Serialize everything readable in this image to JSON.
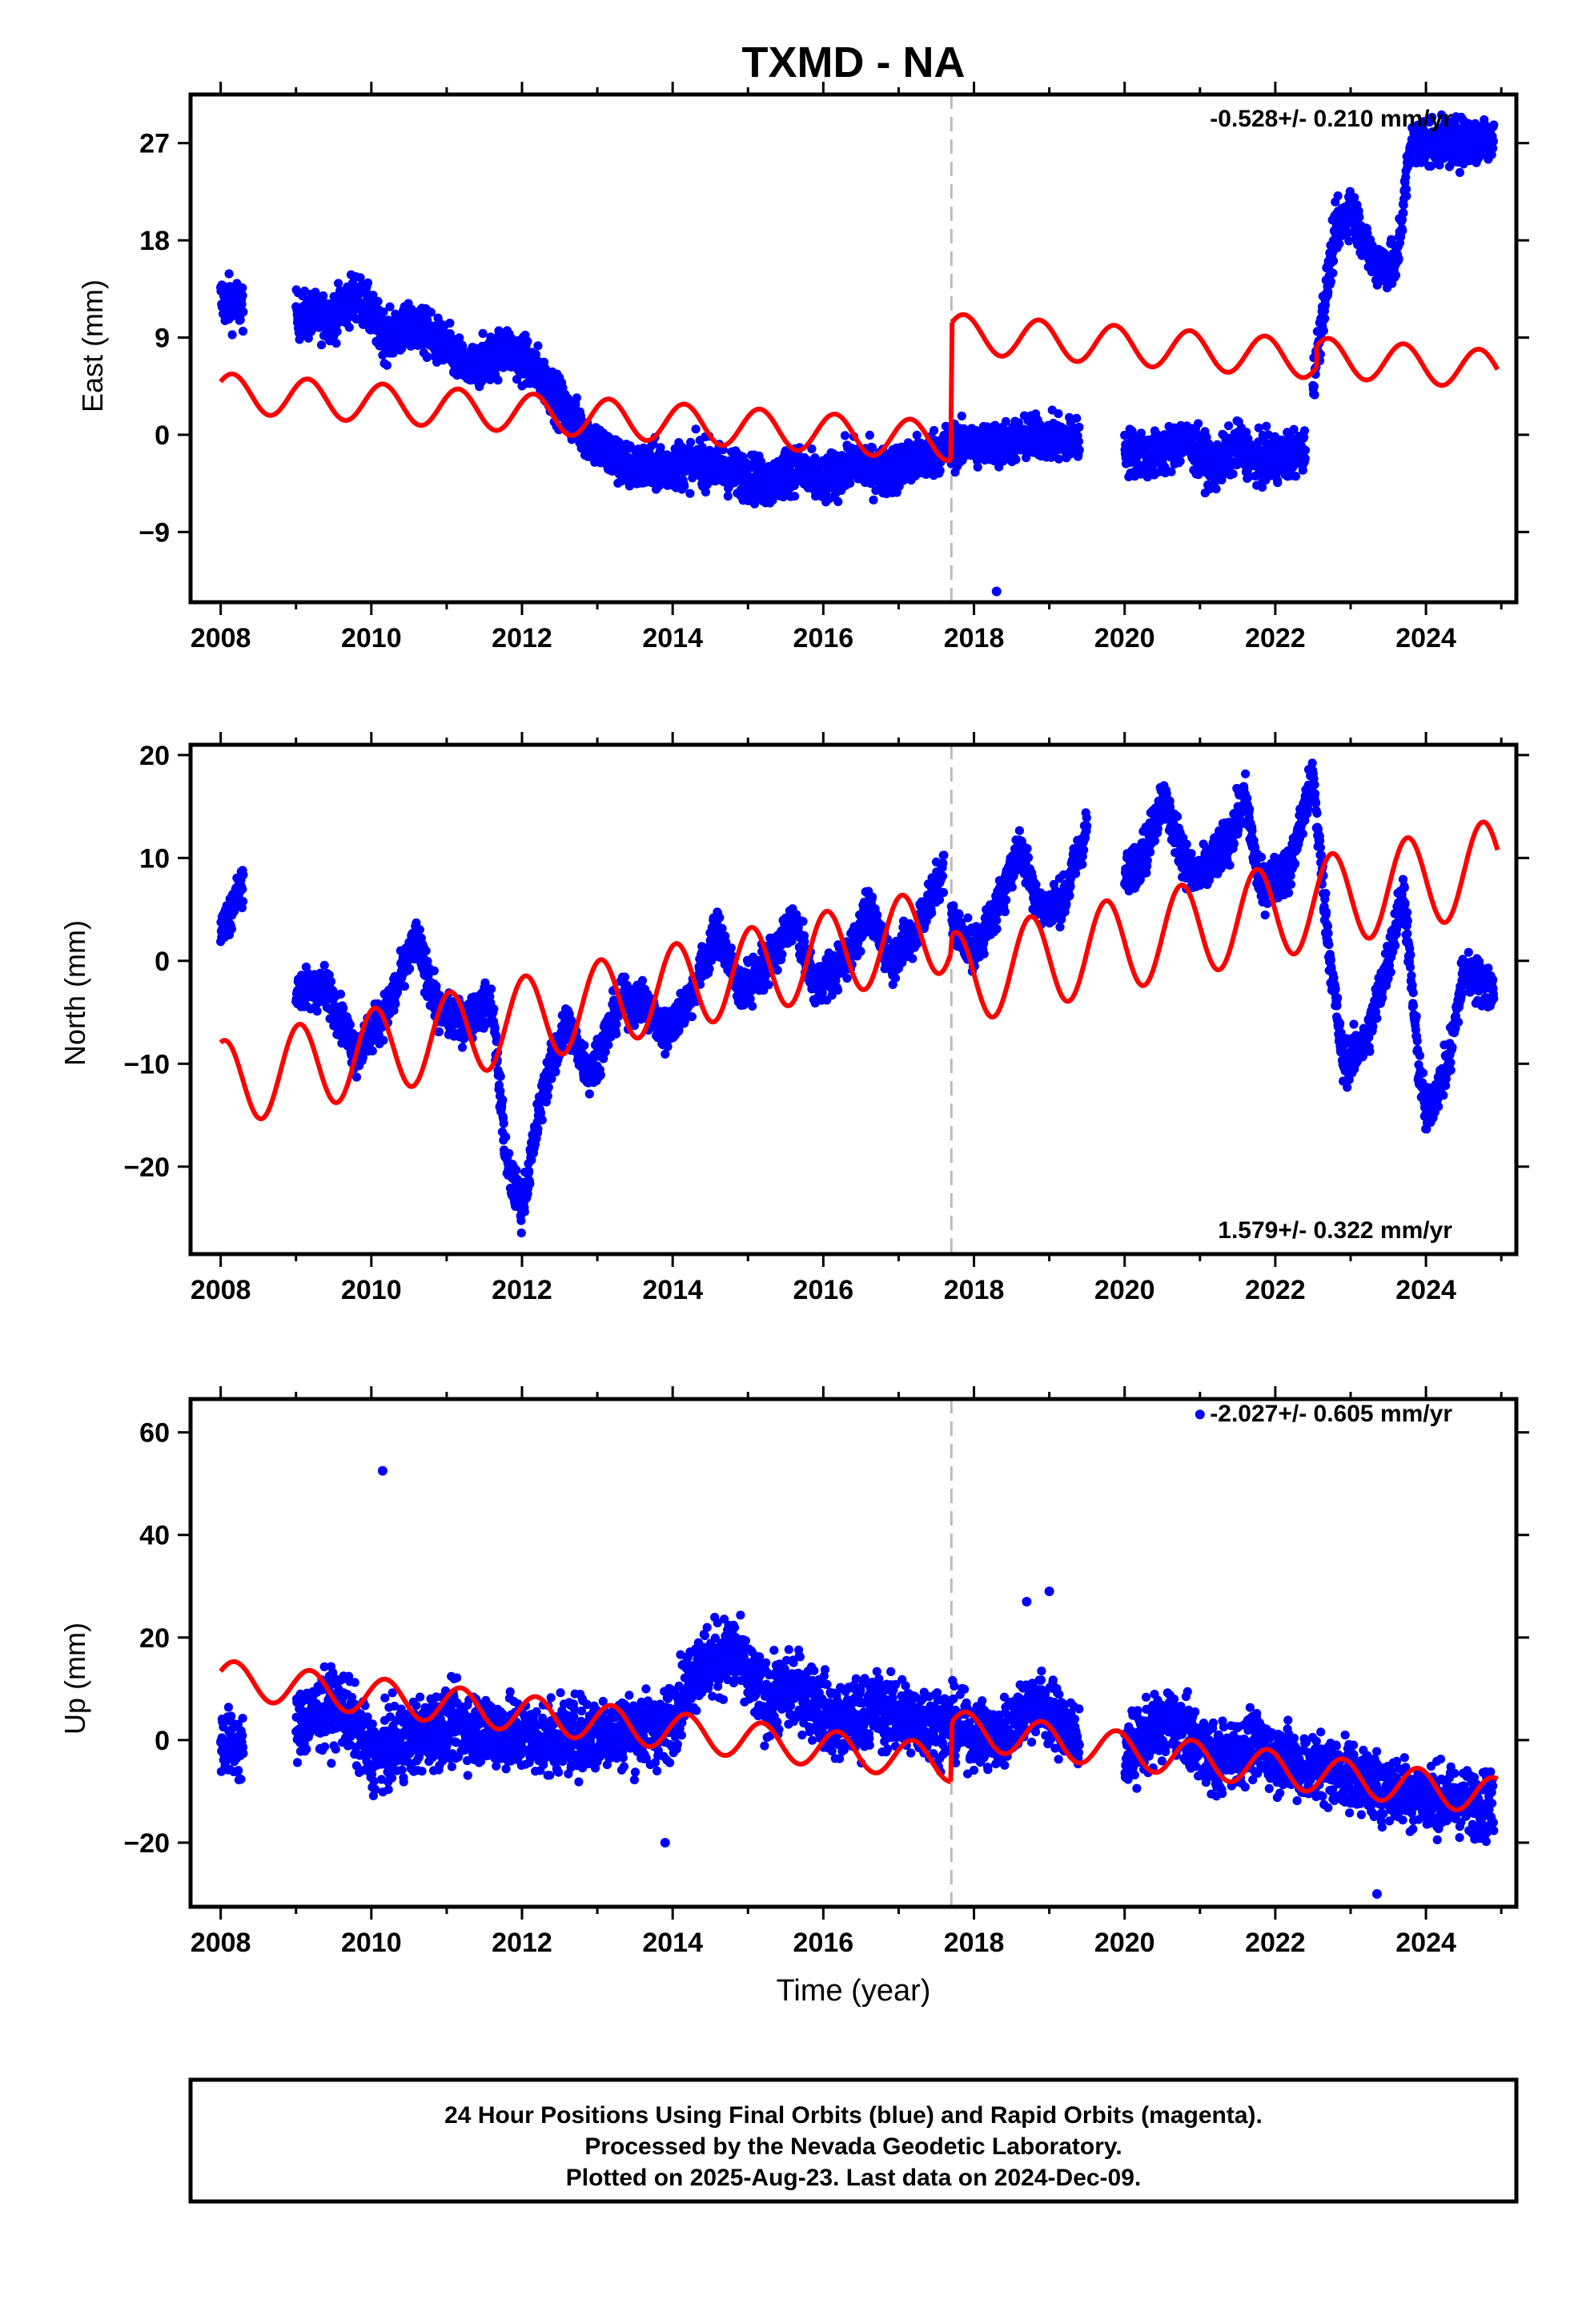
{
  "title": "TXMD - NA",
  "colors": {
    "data": "#0000ff",
    "model": "#ff0000",
    "event_line": "#bbbbbb"
  },
  "chart_data": [
    {
      "type": "scatter",
      "name": "east",
      "ylabel": "East (mm)",
      "xlabel": "",
      "xlim": [
        2007.6,
        2025.2
      ],
      "ylim": [
        -15.5,
        31.5
      ],
      "xticks": [
        "2008",
        "2010",
        "2012",
        "2014",
        "2016",
        "2018",
        "2020",
        "2022",
        "2024"
      ],
      "yticks": [
        "-9",
        "0",
        "9",
        "18",
        "27"
      ],
      "rate_label": "-0.528+/- 0.210 mm/yr",
      "rate_position": "top-right",
      "event_line_x": 2017.7,
      "outliers": [
        [
          2018.3,
          -14.5
        ]
      ],
      "series": [
        {
          "name": "",
          "kind": "daily positions",
          "color": "#0000ff",
          "segments": [
            {
              "x": [
                2008.0,
                2008.3
              ],
              "trend": [
                12.5,
                12.0
              ],
              "spread": 1.6
            },
            {
              "x": [
                2009.0,
                2009.5,
                2009.8,
                2010.2,
                2010.6,
                2011.0,
                2011.3,
                2011.8,
                2012.2,
                2012.6,
                2013.0,
                2013.4,
                2013.8,
                2014.4,
                2014.8,
                2015.3,
                2015.6,
                2016.0,
                2016.4,
                2016.8,
                2017.2,
                2017.7
              ],
              "trend": [
                11.0,
                11.0,
                13.0,
                9.0,
                10.0,
                8.0,
                6.0,
                8.0,
                6.0,
                2.0,
                -1.0,
                -3.0,
                -3.0,
                -2.5,
                -3.5,
                -4.5,
                -3.0,
                -4.5,
                -2.5,
                -3.5,
                -2.5,
                -1.0
              ],
              "spread": 1.5
            },
            {
              "x": [
                2017.7,
                2018.4,
                2018.8,
                2019.4
              ],
              "trend": [
                -1.0,
                -0.8,
                -0.2,
                -0.5
              ],
              "spread": 1.4
            },
            {
              "x": [
                2020.0,
                2020.4,
                2020.8,
                2021.2,
                2021.5,
                2021.8,
                2022.4
              ],
              "trend": [
                -1.5,
                -2.0,
                -0.5,
                -3.0,
                -1.0,
                -2.5,
                -1.5
              ],
              "spread": 1.5
            },
            {
              "x": [
                2022.5,
                2022.8,
                2023.0,
                2023.3,
                2023.6,
                2023.8,
                2024.1,
                2024.5,
                2024.9
              ],
              "trend": [
                5.0,
                19.0,
                21.0,
                16.0,
                15.5,
                27.0,
                27.0,
                27.0,
                27.5
              ],
              "spread": 1.5
            }
          ]
        },
        {
          "name": "",
          "kind": "model",
          "color": "#ff0000",
          "pieces": [
            {
              "x0": 2008.0,
              "x1": 2017.69,
              "offset0": 3.9,
              "offset1": -0.6,
              "amp": 1.8,
              "phase": 0.6
            },
            {
              "x0": 2017.71,
              "x1": 2022.55,
              "offset0": 9.4,
              "offset1": 7.0,
              "amp": 1.8,
              "phase": 0.6
            },
            {
              "x0": 2022.55,
              "x1": 2024.95,
              "offset0": 7.2,
              "offset1": 6.0,
              "amp": 1.8,
              "phase": 0.6
            }
          ]
        }
      ]
    },
    {
      "type": "scatter",
      "name": "north",
      "ylabel": "North (mm)",
      "xlabel": "",
      "xlim": [
        2007.6,
        2025.2
      ],
      "ylim": [
        -28.5,
        21.0
      ],
      "xticks": [
        "2008",
        "2010",
        "2012",
        "2014",
        "2016",
        "2018",
        "2020",
        "2022",
        "2024"
      ],
      "yticks": [
        "-20",
        "-10",
        "0",
        "10",
        "20"
      ],
      "rate_label": "1.579+/- 0.322 mm/yr",
      "rate_position": "bottom-right",
      "event_line_x": 2017.7,
      "outliers": [],
      "series": [
        {
          "name": "",
          "kind": "daily positions",
          "color": "#0000ff",
          "segments": [
            {
              "x": [
                2008.0,
                2008.15,
                2008.3
              ],
              "trend": [
                3.0,
                5.0,
                8.0
              ],
              "spread": 1.3
            },
            {
              "x": [
                2009.0,
                2009.4,
                2009.8,
                2010.2,
                2010.6,
                2010.9,
                2011.2,
                2011.6,
                2011.8,
                2012.0,
                2012.3,
                2012.6,
                2012.9,
                2013.3,
                2013.6,
                2013.9,
                2014.2,
                2014.6,
                2014.9,
                2015.3,
                2015.6,
                2015.9,
                2016.3,
                2016.6,
                2016.9,
                2017.2,
                2017.6
              ],
              "trend": [
                -3.0,
                -2.5,
                -9.0,
                -5.0,
                2.0,
                -5.0,
                -6.0,
                -4.0,
                -20.0,
                -24.0,
                -12.0,
                -6.0,
                -11.0,
                -4.0,
                -4.0,
                -7.0,
                -4.0,
                3.0,
                -3.0,
                0.0,
                4.0,
                -2.5,
                0.0,
                5.0,
                0.0,
                2.5,
                9.0
              ],
              "spread": 1.4
            },
            {
              "x": [
                2017.7,
                2018.0,
                2018.3,
                2018.6,
                2018.9,
                2019.2,
                2019.5
              ],
              "trend": [
                4.0,
                1.0,
                5.0,
                11.0,
                5.0,
                6.0,
                13.0
              ],
              "spread": 1.4
            },
            {
              "x": [
                2020.0,
                2020.3,
                2020.5,
                2020.9,
                2021.1,
                2021.4,
                2021.6,
                2021.8,
                2022.2,
                2022.5,
                2022.7,
                2022.9,
                2023.2,
                2023.5,
                2023.7,
                2023.9,
                2024.0,
                2024.3,
                2024.5,
                2024.9
              ],
              "trend": [
                8.0,
                11.0,
                16.0,
                8.0,
                9.0,
                12.0,
                16.0,
                7.0,
                9.0,
                18.0,
                2.0,
                -10.0,
                -8.0,
                0.0,
                7.0,
                -10.0,
                -15.0,
                -10.0,
                -1.0,
                -3.0
              ],
              "spread": 1.5
            }
          ]
        },
        {
          "name": "",
          "kind": "model",
          "color": "#ff0000",
          "pieces": [
            {
              "x0": 2008.0,
              "x1": 2017.69,
              "offset0": -12.0,
              "offset1": 3.2,
              "amp": 4.2,
              "phase": 1.3
            },
            {
              "x0": 2017.71,
              "x1": 2024.95,
              "offset0": -1.8,
              "offset1": 9.3,
              "amp": 4.5,
              "phase": 1.3
            }
          ]
        }
      ]
    },
    {
      "type": "scatter",
      "name": "up",
      "ylabel": "Up (mm)",
      "xlabel": "Time (year)",
      "xlim": [
        2007.6,
        2025.2
      ],
      "ylim": [
        -32.5,
        66.5
      ],
      "xticks": [
        "2008",
        "2010",
        "2012",
        "2014",
        "2016",
        "2018",
        "2020",
        "2022",
        "2024"
      ],
      "yticks": [
        "-20",
        "0",
        "20",
        "40",
        "60"
      ],
      "rate_label": "-2.027+/- 0.605 mm/yr",
      "rate_position": "top-right",
      "event_line_x": 2017.7,
      "outliers": [
        [
          2010.15,
          52.5
        ],
        [
          2021.0,
          63.5
        ],
        [
          2018.7,
          27.0
        ],
        [
          2019.0,
          29.0
        ],
        [
          2013.9,
          -20.0
        ],
        [
          2023.35,
          -30.0
        ]
      ],
      "series": [
        {
          "name": "",
          "kind": "daily positions",
          "color": "#0000ff",
          "segments": [
            {
              "x": [
                2008.0,
                2008.3
              ],
              "trend": [
                0.0,
                -2.0
              ],
              "spread": 4.5
            },
            {
              "x": [
                2009.0,
                2009.6,
                2010.0,
                2010.5,
                2011.0,
                2011.6,
                2012.2,
                2012.8,
                2013.4,
                2013.9,
                2014.3,
                2014.8,
                2015.2,
                2015.7,
                2016.2,
                2016.7,
                2017.2,
                2017.7
              ],
              "trend": [
                3.0,
                7.0,
                -3.0,
                0.0,
                3.0,
                2.0,
                0.0,
                1.0,
                2.0,
                2.0,
                14.0,
                17.0,
                8.0,
                10.0,
                3.0,
                6.0,
                4.0,
                3.0
              ],
              "spread": 5.0
            },
            {
              "x": [
                2017.7,
                2018.3,
                2018.8,
                2019.4
              ],
              "trend": [
                3.0,
                0.0,
                8.0,
                0.0
              ],
              "spread": 4.5
            },
            {
              "x": [
                2020.0,
                2020.6,
                2021.2,
                2021.7,
                2022.3,
                2022.8,
                2023.4,
                2024.0,
                2024.9
              ],
              "trend": [
                -3.0,
                4.0,
                -4.0,
                -1.0,
                -5.0,
                -6.0,
                -9.0,
                -11.0,
                -13.0
              ],
              "spread": 4.5
            }
          ]
        },
        {
          "name": "",
          "kind": "model",
          "color": "#ff0000",
          "pieces": [
            {
              "x0": 2008.0,
              "x1": 2017.69,
              "offset0": 12.0,
              "offset1": -4.5,
              "amp": 3.6,
              "phase": 0.4
            },
            {
              "x0": 2017.71,
              "x1": 2024.95,
              "offset0": 2.2,
              "offset1": -11.0,
              "amp": 3.6,
              "phase": 0.4
            }
          ]
        }
      ]
    }
  ],
  "footer": {
    "line1": "24 Hour Positions Using Final Orbits (blue) and Rapid Orbits (magenta).",
    "line2": "Processed by the Nevada Geodetic Laboratory.",
    "line3": "Plotted on 2025-Aug-23. Last data on 2024-Dec-09."
  }
}
